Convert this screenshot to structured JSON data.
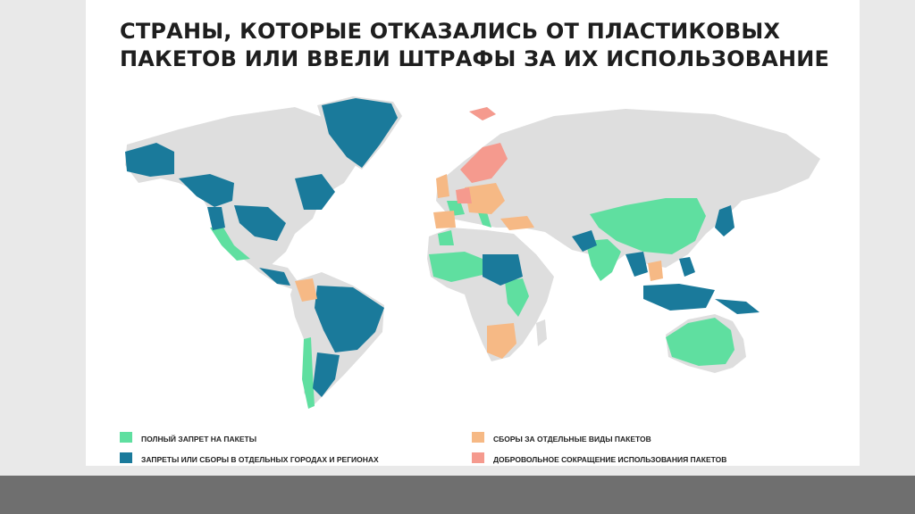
{
  "title": {
    "line1": "СТРАНЫ, КОТОРЫЕ ОТКАЗАЛИСЬ ОТ ПЛАСТИКОВЫХ",
    "line2": "ПАКЕТОВ ИЛИ ВВЕЛИ ШТРАФЫ ЗА ИХ ИСПОЛЬЗОВАНИЕ"
  },
  "colors": {
    "full_ban": "#5fdfa0",
    "partial": "#1a7a9b",
    "fees": "#f6b985",
    "voluntary": "#f59a8e",
    "land": "#dedede",
    "background": "#ffffff"
  },
  "legend": [
    {
      "key": "full_ban",
      "label": "ПОЛНЫЙ ЗАПРЕТ НА ПАКЕТЫ"
    },
    {
      "key": "partial",
      "label": "ЗАПРЕТЫ ИЛИ СБОРЫ В ОТДЕЛЬНЫХ ГОРОДАХ И РЕГИОНАХ"
    },
    {
      "key": "fees",
      "label": "СБОРЫ ЗА ОТДЕЛЬНЫЕ ВИДЫ ПАКЕТОВ"
    },
    {
      "key": "voluntary",
      "label": "ДОБРОВОЛЬНОЕ СОКРАЩЕНИЕ ИСПОЛЬЗОВАНИЯ ПАКЕТОВ"
    }
  ]
}
